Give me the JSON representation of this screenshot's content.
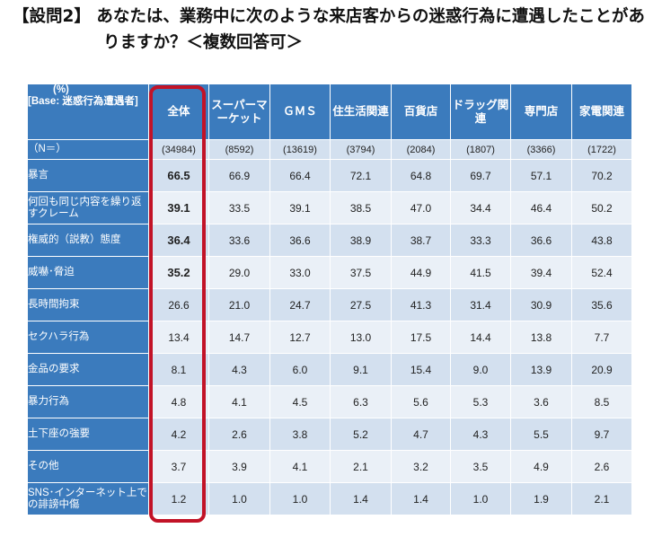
{
  "question": {
    "line1": "【設問2】 あなたは、業務中に次のような来店客からの迷惑行為に遭遇したことがあ",
    "line2": "りますか？＜複数回答可＞"
  },
  "table": {
    "unit_label": "(%)",
    "base_label": "[Base: 迷惑行為遭遇者]",
    "columns": [
      "全体",
      "スーパーマーケット",
      "ＧＭＳ",
      "住生活関連",
      "百貨店",
      "ドラッグ関連",
      "専門店",
      "家電関連"
    ],
    "n_row": {
      "label": "（N＝）",
      "values": [
        "(34984)",
        "(8592)",
        "(13619)",
        "(3794)",
        "(2084)",
        "(1807)",
        "(3366)",
        "(1722)"
      ]
    },
    "rows": [
      {
        "label": "暴言",
        "values": [
          "66.5",
          "66.9",
          "66.4",
          "72.1",
          "64.8",
          "69.7",
          "57.1",
          "70.2"
        ]
      },
      {
        "label": "何回も同じ内容を繰り返すクレーム",
        "values": [
          "39.1",
          "33.5",
          "39.1",
          "38.5",
          "47.0",
          "34.4",
          "46.4",
          "50.2"
        ]
      },
      {
        "label": "権威的（説教）態度",
        "values": [
          "36.4",
          "33.6",
          "36.6",
          "38.9",
          "38.7",
          "33.3",
          "36.6",
          "43.8"
        ]
      },
      {
        "label": "威嚇･脅迫",
        "values": [
          "35.2",
          "29.0",
          "33.0",
          "37.5",
          "44.9",
          "41.5",
          "39.4",
          "52.4"
        ]
      },
      {
        "label": "長時間拘束",
        "values": [
          "26.6",
          "21.0",
          "24.7",
          "27.5",
          "41.3",
          "31.4",
          "30.9",
          "35.6"
        ]
      },
      {
        "label": "セクハラ行為",
        "values": [
          "13.4",
          "14.7",
          "12.7",
          "13.0",
          "17.5",
          "14.4",
          "13.8",
          "7.7"
        ]
      },
      {
        "label": "金品の要求",
        "values": [
          "8.1",
          "4.3",
          "6.0",
          "9.1",
          "15.4",
          "9.0",
          "13.9",
          "20.9"
        ]
      },
      {
        "label": "暴力行為",
        "values": [
          "4.8",
          "4.1",
          "4.5",
          "6.3",
          "5.6",
          "5.3",
          "3.6",
          "8.5"
        ]
      },
      {
        "label": "土下座の強要",
        "values": [
          "4.2",
          "2.6",
          "3.8",
          "5.2",
          "4.7",
          "4.3",
          "5.5",
          "9.7"
        ]
      },
      {
        "label": "その他",
        "values": [
          "3.7",
          "3.9",
          "4.1",
          "2.1",
          "3.2",
          "3.5",
          "4.9",
          "2.6"
        ]
      },
      {
        "label": "SNS･インターネット上での誹謗中傷",
        "values": [
          "1.2",
          "1.0",
          "1.0",
          "1.4",
          "1.4",
          "1.0",
          "1.9",
          "2.1"
        ]
      }
    ]
  },
  "colors": {
    "header_blue": "#3b7bbd",
    "row_dark": "#d3e0ef",
    "row_light": "#eaf0f7",
    "highlight_red": "#c21327"
  },
  "chart_data": {
    "type": "table",
    "categories": [
      "暴言",
      "何回も同じ内容を繰り返すクレーム",
      "権威的（説教）態度",
      "威嚇･脅迫",
      "長時間拘束",
      "セクハラ行為",
      "金品の要求",
      "暴力行為",
      "土下座の強要",
      "その他",
      "SNS･インターネット上での誹謗中傷"
    ],
    "series": [
      {
        "name": "全体",
        "n": 34984,
        "values": [
          66.5,
          39.1,
          36.4,
          35.2,
          26.6,
          13.4,
          8.1,
          4.8,
          4.2,
          3.7,
          1.2
        ]
      },
      {
        "name": "スーパーマーケット",
        "n": 8592,
        "values": [
          66.9,
          33.5,
          33.6,
          29.0,
          21.0,
          14.7,
          4.3,
          4.1,
          2.6,
          3.9,
          1.0
        ]
      },
      {
        "name": "ＧＭＳ",
        "n": 13619,
        "values": [
          66.4,
          39.1,
          36.6,
          33.0,
          24.7,
          12.7,
          6.0,
          4.5,
          3.8,
          4.1,
          1.0
        ]
      },
      {
        "name": "住生活関連",
        "n": 3794,
        "values": [
          72.1,
          38.5,
          38.9,
          37.5,
          27.5,
          13.0,
          9.1,
          6.3,
          5.2,
          2.1,
          1.4
        ]
      },
      {
        "name": "百貨店",
        "n": 2084,
        "values": [
          64.8,
          47.0,
          38.7,
          44.9,
          41.3,
          17.5,
          15.4,
          5.6,
          4.7,
          3.2,
          1.4
        ]
      },
      {
        "name": "ドラッグ関連",
        "n": 1807,
        "values": [
          69.7,
          34.4,
          33.3,
          41.5,
          31.4,
          14.4,
          9.0,
          5.3,
          4.3,
          3.5,
          1.0
        ]
      },
      {
        "name": "専門店",
        "n": 3366,
        "values": [
          57.1,
          46.4,
          36.6,
          39.4,
          30.9,
          13.8,
          13.9,
          3.6,
          5.5,
          4.9,
          1.9
        ]
      },
      {
        "name": "家電関連",
        "n": 1722,
        "values": [
          70.2,
          50.2,
          43.8,
          52.4,
          35.6,
          7.7,
          20.9,
          8.5,
          9.7,
          2.6,
          2.1
        ]
      }
    ]
  }
}
